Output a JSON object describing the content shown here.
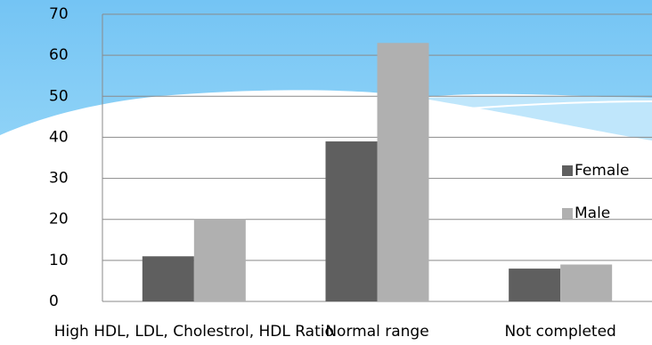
{
  "chart_data": {
    "type": "bar",
    "categories": [
      "High HDL, LDL, Cholestrol, HDL Ratio",
      "Normal range",
      "Not completed"
    ],
    "series": [
      {
        "name": "Female",
        "color": "#5f5f5f",
        "values": [
          11,
          39,
          8
        ]
      },
      {
        "name": "Male",
        "color": "#b0b0b0",
        "values": [
          20,
          63,
          9
        ]
      }
    ],
    "ylim": [
      0,
      70
    ],
    "yticks": [
      0,
      10,
      20,
      30,
      40,
      50,
      60,
      70
    ],
    "grid": true,
    "legend": "right"
  }
}
